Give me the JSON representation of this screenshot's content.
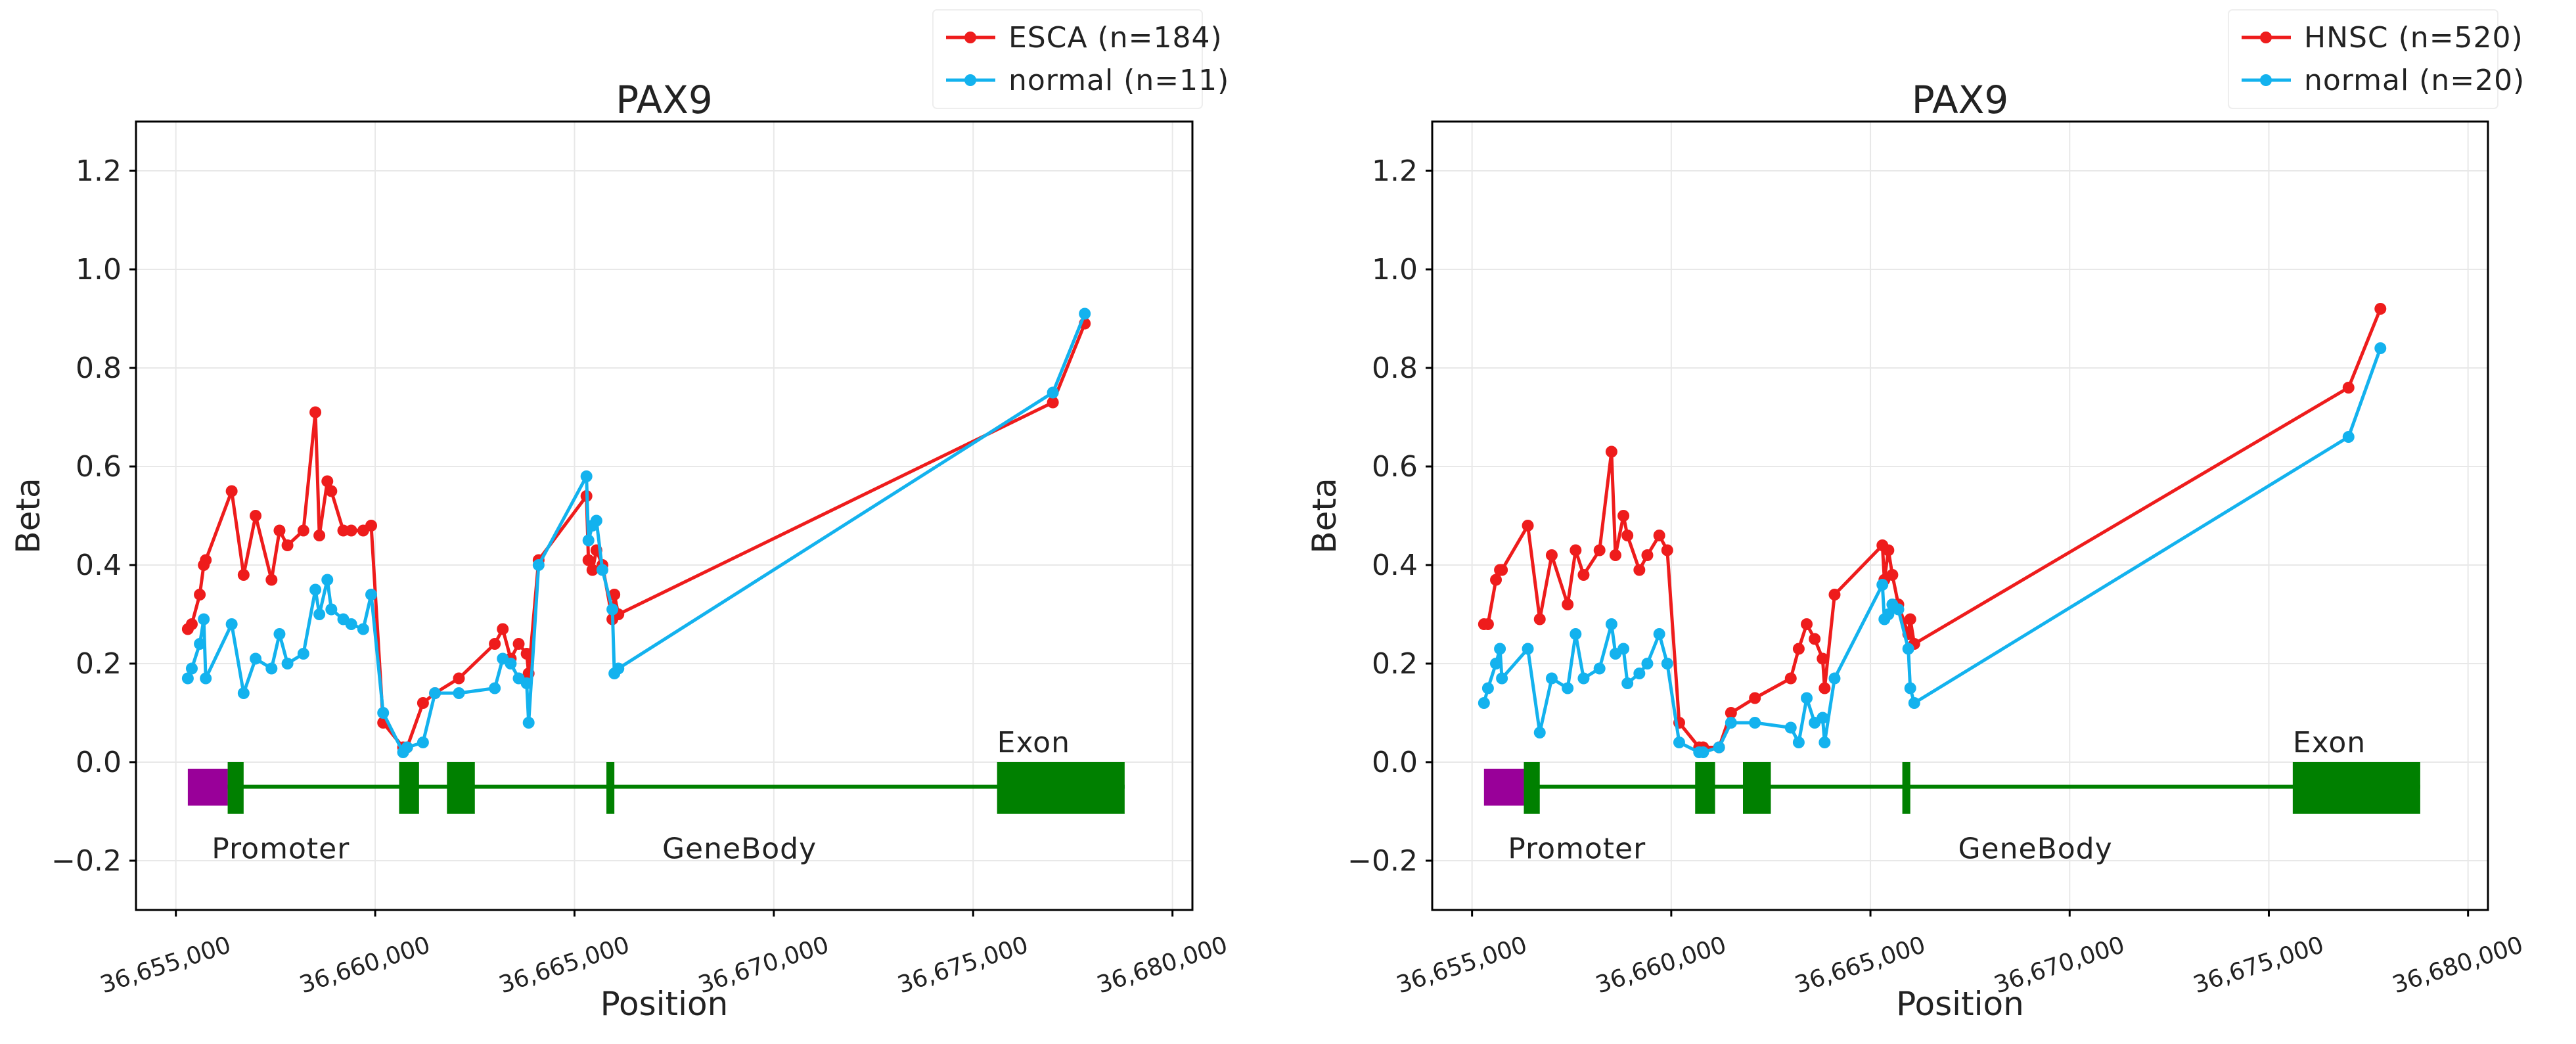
{
  "chart_data": [
    {
      "type": "line",
      "title": "PAX9",
      "xlabel": "Position",
      "ylabel": "Beta",
      "xlim": [
        36654000,
        36680500
      ],
      "ylim": [
        -0.3,
        1.3
      ],
      "xticks": [
        36655000,
        36660000,
        36665000,
        36670000,
        36675000,
        36680000
      ],
      "xtick_labels": [
        "36,655,000",
        "36,660,000",
        "36,665,000",
        "36,670,000",
        "36,675,000",
        "36,680,000"
      ],
      "yticks": [
        -0.2,
        0.0,
        0.2,
        0.4,
        0.6,
        0.8,
        1.0,
        1.2
      ],
      "ytick_labels": [
        "−0.2",
        "0.0",
        "0.2",
        "0.4",
        "0.6",
        "0.8",
        "1.0",
        "1.2"
      ],
      "grid": true,
      "legend_position": "top-right, above plot",
      "series": [
        {
          "name": "ESCA (n=184)",
          "color": "#ee1c1c",
          "x": [
            36655300,
            36655400,
            36655600,
            36655700,
            36655750,
            36656400,
            36656700,
            36657000,
            36657400,
            36657600,
            36657800,
            36658200,
            36658500,
            36658600,
            36658800,
            36658900,
            36659200,
            36659400,
            36659700,
            36659900,
            36660200,
            36660700,
            36660800,
            36661200,
            36661500,
            36662100,
            36663000,
            36663200,
            36663400,
            36663600,
            36663800,
            36663850,
            36664100,
            36665300,
            36665350,
            36665450,
            36665550,
            36665700,
            36665950,
            36666000,
            36666100,
            36677000,
            36677800
          ],
          "y": [
            0.27,
            0.28,
            0.34,
            0.4,
            0.41,
            0.55,
            0.38,
            0.5,
            0.37,
            0.47,
            0.44,
            0.47,
            0.71,
            0.46,
            0.57,
            0.55,
            0.47,
            0.47,
            0.47,
            0.48,
            0.08,
            0.03,
            0.03,
            0.12,
            0.14,
            0.17,
            0.24,
            0.27,
            0.21,
            0.24,
            0.22,
            0.18,
            0.41,
            0.54,
            0.41,
            0.39,
            0.43,
            0.4,
            0.29,
            0.34,
            0.3,
            0.73,
            0.89
          ]
        },
        {
          "name": "normal (n=11)",
          "color": "#13b2ee",
          "x": [
            36655300,
            36655400,
            36655600,
            36655700,
            36655750,
            36656400,
            36656700,
            36657000,
            36657400,
            36657600,
            36657800,
            36658200,
            36658500,
            36658600,
            36658800,
            36658900,
            36659200,
            36659400,
            36659700,
            36659900,
            36660200,
            36660700,
            36660800,
            36661200,
            36661500,
            36662100,
            36663000,
            36663200,
            36663400,
            36663600,
            36663800,
            36663850,
            36664100,
            36665300,
            36665350,
            36665450,
            36665550,
            36665700,
            36665950,
            36666000,
            36666100,
            36677000,
            36677800
          ],
          "y": [
            0.17,
            0.19,
            0.24,
            0.29,
            0.17,
            0.28,
            0.14,
            0.21,
            0.19,
            0.26,
            0.2,
            0.22,
            0.35,
            0.3,
            0.37,
            0.31,
            0.29,
            0.28,
            0.27,
            0.34,
            0.1,
            0.02,
            0.03,
            0.04,
            0.14,
            0.14,
            0.15,
            0.21,
            0.2,
            0.17,
            0.16,
            0.08,
            0.4,
            0.58,
            0.45,
            0.48,
            0.49,
            0.39,
            0.31,
            0.18,
            0.19,
            0.75,
            0.91
          ]
        }
      ],
      "gene_track": {
        "promoter_color": "#990099",
        "gene_color": "#008000",
        "labels": {
          "promoter": "Promoter",
          "genebody": "GeneBody",
          "exon": "Exon"
        },
        "promoter_region": [
          36655300,
          36656300
        ],
        "gene_line": [
          36656300,
          36678800
        ],
        "exons": [
          [
            36656300,
            36656700
          ],
          [
            36660600,
            36661100
          ],
          [
            36661800,
            36662500
          ],
          [
            36665800,
            36666000
          ],
          [
            36675600,
            36678800
          ]
        ],
        "line_y": -0.05,
        "box_y": [
          -0.095,
          0.0
        ]
      }
    },
    {
      "type": "line",
      "title": "PAX9",
      "xlabel": "Position",
      "ylabel": "Beta",
      "xlim": [
        36654000,
        36680500
      ],
      "ylim": [
        -0.3,
        1.3
      ],
      "xticks": [
        36655000,
        36660000,
        36665000,
        36670000,
        36675000,
        36680000
      ],
      "xtick_labels": [
        "36,655,000",
        "36,660,000",
        "36,665,000",
        "36,670,000",
        "36,675,000",
        "36,680,000"
      ],
      "yticks": [
        -0.2,
        0.0,
        0.2,
        0.4,
        0.6,
        0.8,
        1.0,
        1.2
      ],
      "ytick_labels": [
        "−0.2",
        "0.0",
        "0.2",
        "0.4",
        "0.6",
        "0.8",
        "1.0",
        "1.2"
      ],
      "grid": true,
      "legend_position": "top-right, above plot",
      "series": [
        {
          "name": "HNSC (n=520)",
          "color": "#ee1c1c",
          "x": [
            36655300,
            36655400,
            36655600,
            36655700,
            36655750,
            36656400,
            36656700,
            36657000,
            36657400,
            36657600,
            36657800,
            36658200,
            36658500,
            36658600,
            36658800,
            36658900,
            36659200,
            36659400,
            36659700,
            36659900,
            36660200,
            36660700,
            36660800,
            36661200,
            36661500,
            36662100,
            36663000,
            36663200,
            36663400,
            36663600,
            36663800,
            36663850,
            36664100,
            36665300,
            36665350,
            36665450,
            36665550,
            36665700,
            36665950,
            36666000,
            36666100,
            36677000,
            36677800
          ],
          "y": [
            0.28,
            0.28,
            0.37,
            0.39,
            0.39,
            0.48,
            0.29,
            0.42,
            0.32,
            0.43,
            0.38,
            0.43,
            0.63,
            0.42,
            0.5,
            0.46,
            0.39,
            0.42,
            0.46,
            0.43,
            0.08,
            0.03,
            0.03,
            0.03,
            0.1,
            0.13,
            0.17,
            0.23,
            0.28,
            0.25,
            0.21,
            0.15,
            0.34,
            0.44,
            0.37,
            0.43,
            0.38,
            0.32,
            0.26,
            0.29,
            0.24,
            0.76,
            0.92
          ]
        },
        {
          "name": "normal (n=20)",
          "color": "#13b2ee",
          "x": [
            36655300,
            36655400,
            36655600,
            36655700,
            36655750,
            36656400,
            36656700,
            36657000,
            36657400,
            36657600,
            36657800,
            36658200,
            36658500,
            36658600,
            36658800,
            36658900,
            36659200,
            36659400,
            36659700,
            36659900,
            36660200,
            36660700,
            36660800,
            36661200,
            36661500,
            36662100,
            36663000,
            36663200,
            36663400,
            36663600,
            36663800,
            36663850,
            36664100,
            36665300,
            36665350,
            36665450,
            36665550,
            36665700,
            36665950,
            36666000,
            36666100,
            36677000,
            36677800
          ],
          "y": [
            0.12,
            0.15,
            0.2,
            0.23,
            0.17,
            0.23,
            0.06,
            0.17,
            0.15,
            0.26,
            0.17,
            0.19,
            0.28,
            0.22,
            0.23,
            0.16,
            0.18,
            0.2,
            0.26,
            0.2,
            0.04,
            0.02,
            0.02,
            0.03,
            0.08,
            0.08,
            0.07,
            0.04,
            0.13,
            0.08,
            0.09,
            0.04,
            0.17,
            0.36,
            0.29,
            0.3,
            0.32,
            0.31,
            0.23,
            0.15,
            0.12,
            0.66,
            0.84
          ]
        }
      ],
      "gene_track": {
        "promoter_color": "#990099",
        "gene_color": "#008000",
        "labels": {
          "promoter": "Promoter",
          "genebody": "GeneBody",
          "exon": "Exon"
        },
        "promoter_region": [
          36655300,
          36656300
        ],
        "gene_line": [
          36656300,
          36678800
        ],
        "exons": [
          [
            36656300,
            36656700
          ],
          [
            36660600,
            36661100
          ],
          [
            36661800,
            36662500
          ],
          [
            36665800,
            36666000
          ],
          [
            36675600,
            36678800
          ]
        ],
        "line_y": -0.05,
        "box_y": [
          -0.095,
          0.0
        ]
      }
    }
  ]
}
